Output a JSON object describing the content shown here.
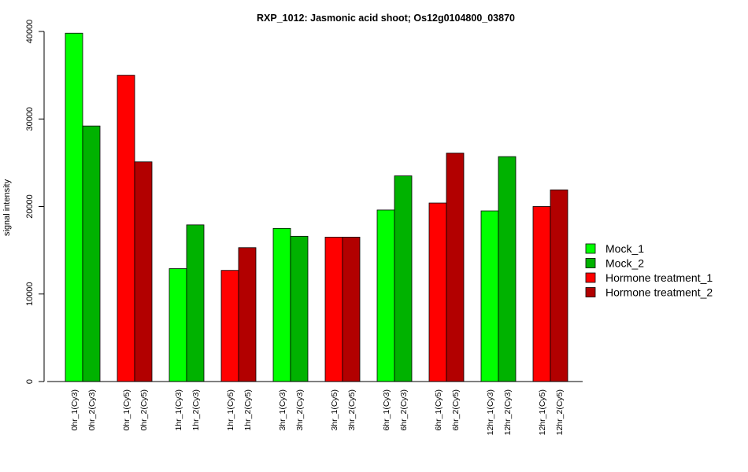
{
  "chart_data": {
    "type": "bar",
    "title": "RXP_1012: Jasmonic acid shoot; Os12g0104800_03870",
    "xlabel": "",
    "ylabel": "signal intensity",
    "ylim": [
      0,
      40000
    ],
    "yticks": [
      0,
      10000,
      20000,
      30000,
      40000
    ],
    "grid": false,
    "legend_position": "right",
    "series": [
      {
        "name": "Mock_1",
        "color": "#00ff00"
      },
      {
        "name": "Mock_2",
        "color": "#00b200"
      },
      {
        "name": "Hormone treatment_1",
        "color": "#ff0000"
      },
      {
        "name": "Hormone treatment_2",
        "color": "#b20000"
      }
    ],
    "groups": [
      {
        "bars": [
          {
            "label": "0hr_1(Cy3)",
            "value": 39800,
            "series": 0
          },
          {
            "label": "0hr_2(Cy3)",
            "value": 29200,
            "series": 1
          }
        ]
      },
      {
        "bars": [
          {
            "label": "0hr_1(Cy5)",
            "value": 35000,
            "series": 2
          },
          {
            "label": "0hr_2(Cy5)",
            "value": 25100,
            "series": 3
          }
        ]
      },
      {
        "bars": [
          {
            "label": "1hr_1(Cy3)",
            "value": 12900,
            "series": 0
          },
          {
            "label": "1hr_2(Cy3)",
            "value": 17900,
            "series": 1
          }
        ]
      },
      {
        "bars": [
          {
            "label": "1hr_1(Cy5)",
            "value": 12700,
            "series": 2
          },
          {
            "label": "1hr_2(Cy5)",
            "value": 15300,
            "series": 3
          }
        ]
      },
      {
        "bars": [
          {
            "label": "3hr_1(Cy3)",
            "value": 17500,
            "series": 0
          },
          {
            "label": "3hr_2(Cy3)",
            "value": 16600,
            "series": 1
          }
        ]
      },
      {
        "bars": [
          {
            "label": "3hr_1(Cy5)",
            "value": 16500,
            "series": 2
          },
          {
            "label": "3hr_2(Cy5)",
            "value": 16500,
            "series": 3
          }
        ]
      },
      {
        "bars": [
          {
            "label": "6hr_1(Cy3)",
            "value": 19600,
            "series": 0
          },
          {
            "label": "6hr_2(Cy3)",
            "value": 23500,
            "series": 1
          }
        ]
      },
      {
        "bars": [
          {
            "label": "6hr_1(Cy5)",
            "value": 20400,
            "series": 2
          },
          {
            "label": "6hr_2(Cy5)",
            "value": 26100,
            "series": 3
          }
        ]
      },
      {
        "bars": [
          {
            "label": "12hr_1(Cy3)",
            "value": 19500,
            "series": 0
          },
          {
            "label": "12hr_2(Cy3)",
            "value": 25700,
            "series": 1
          }
        ]
      },
      {
        "bars": [
          {
            "label": "12hr_1(Cy5)",
            "value": 20000,
            "series": 2
          },
          {
            "label": "12hr_2(Cy5)",
            "value": 21900,
            "series": 3
          }
        ]
      }
    ]
  }
}
